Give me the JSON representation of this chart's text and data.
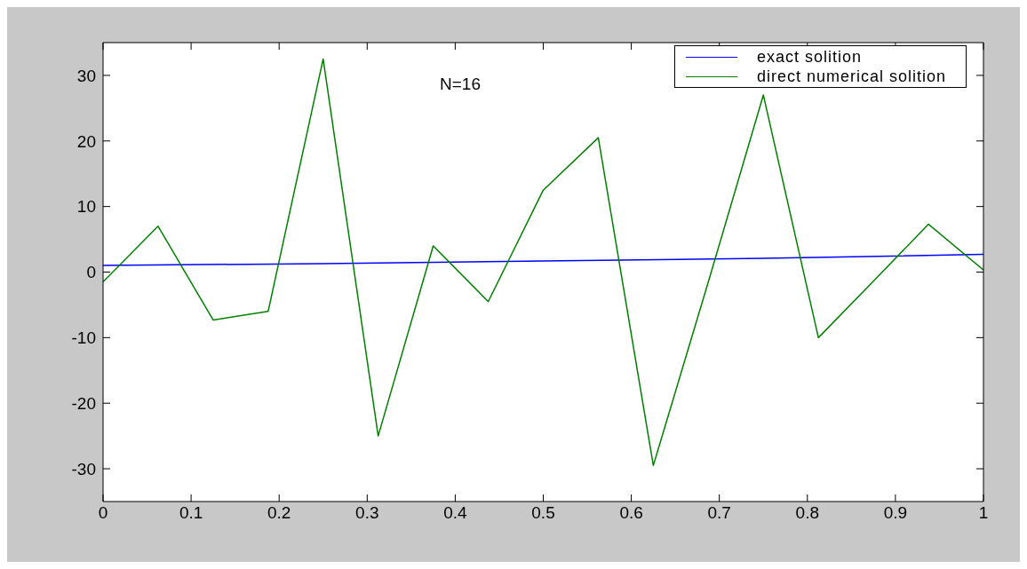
{
  "chart_data": {
    "type": "line",
    "annotations": [
      "N=16"
    ],
    "xlim": [
      0,
      1
    ],
    "xticks": [
      0,
      0.1,
      0.2,
      0.3,
      0.4,
      0.5,
      0.6,
      0.7,
      0.8,
      0.9,
      1
    ],
    "ylim": [
      -35,
      35
    ],
    "yticks": [
      -30,
      -20,
      -10,
      0,
      10,
      20,
      30
    ],
    "grid": false,
    "legend": "top right",
    "marker": "none",
    "line_style": "solid",
    "series": [
      {
        "name": "exact solition",
        "color": "#0000ff",
        "x": [
          0,
          0.25,
          0.5,
          0.75,
          1
        ],
        "values": [
          1,
          1.3,
          1.7,
          2.1,
          2.7
        ]
      },
      {
        "name": "direct numerical solition",
        "color": "#008000",
        "x": [
          0,
          0.0625,
          0.125,
          0.1875,
          0.25,
          0.3125,
          0.375,
          0.4375,
          0.5,
          0.5625,
          0.625,
          0.6875,
          0.75,
          0.8125,
          0.875,
          0.9375,
          1
        ],
        "values": [
          -1.5,
          7,
          -7.3,
          -6,
          32.5,
          -25,
          4,
          -4.5,
          12.5,
          20.5,
          -29.5,
          -1.5,
          27,
          -10,
          -1.4,
          7.3,
          0.3
        ]
      }
    ]
  }
}
